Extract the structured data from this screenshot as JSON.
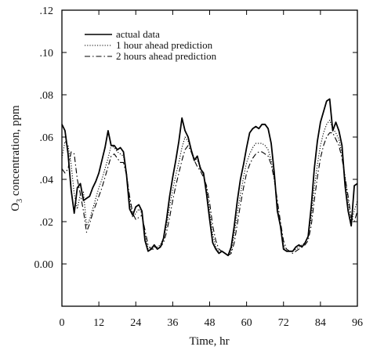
{
  "chart_data": {
    "type": "line",
    "xlabel": "Time, hr",
    "ylabel_main": "O",
    "ylabel_sub": "3",
    "ylabel_rest": " concentration, ppm",
    "xlim": [
      0,
      96
    ],
    "ylim": [
      -0.02,
      0.12
    ],
    "xticks": [
      0,
      12,
      24,
      36,
      48,
      60,
      72,
      84,
      96
    ],
    "xtick_labels": [
      "0",
      "12",
      "24",
      "36",
      "48",
      "60",
      "72",
      "84",
      "96"
    ],
    "yticks": [
      0.0,
      0.02,
      0.04,
      0.06,
      0.08,
      0.1,
      0.12
    ],
    "ytick_labels": [
      "0.00",
      ".02",
      ".04",
      ".06",
      ".08",
      ".10",
      ".12"
    ],
    "grid": false,
    "legend_position": "top-left",
    "series": [
      {
        "name": "actual data",
        "style": "solid",
        "color": "#000000",
        "x": [
          0,
          1,
          2,
          3,
          4,
          5,
          6,
          7,
          8,
          9,
          10,
          11,
          12,
          13,
          14,
          15,
          16,
          17,
          18,
          19,
          20,
          21,
          22,
          23,
          24,
          25,
          26,
          27,
          28,
          29,
          30,
          31,
          32,
          33,
          34,
          35,
          36,
          37,
          38,
          39,
          40,
          41,
          42,
          43,
          44,
          45,
          46,
          47,
          48,
          49,
          50,
          51,
          52,
          53,
          54,
          55,
          56,
          57,
          58,
          59,
          60,
          61,
          62,
          63,
          64,
          65,
          66,
          67,
          68,
          69,
          70,
          71,
          72,
          73,
          74,
          75,
          76,
          77,
          78,
          79,
          80,
          81,
          82,
          83,
          84,
          85,
          86,
          87,
          88,
          89,
          90,
          91,
          92,
          93,
          94,
          95,
          96
        ],
        "y": [
          0.066,
          0.063,
          0.052,
          0.035,
          0.024,
          0.036,
          0.038,
          0.03,
          0.031,
          0.032,
          0.036,
          0.039,
          0.043,
          0.049,
          0.055,
          0.063,
          0.056,
          0.056,
          0.054,
          0.055,
          0.053,
          0.042,
          0.026,
          0.023,
          0.027,
          0.028,
          0.025,
          0.011,
          0.006,
          0.007,
          0.009,
          0.007,
          0.008,
          0.012,
          0.021,
          0.032,
          0.041,
          0.049,
          0.058,
          0.069,
          0.063,
          0.06,
          0.054,
          0.049,
          0.051,
          0.045,
          0.043,
          0.033,
          0.021,
          0.01,
          0.007,
          0.005,
          0.006,
          0.005,
          0.004,
          0.008,
          0.018,
          0.03,
          0.04,
          0.047,
          0.055,
          0.062,
          0.064,
          0.065,
          0.064,
          0.066,
          0.066,
          0.064,
          0.057,
          0.043,
          0.025,
          0.018,
          0.007,
          0.006,
          0.006,
          0.006,
          0.008,
          0.009,
          0.008,
          0.01,
          0.013,
          0.027,
          0.045,
          0.058,
          0.067,
          0.072,
          0.077,
          0.078,
          0.063,
          0.067,
          0.063,
          0.056,
          0.037,
          0.025,
          0.018,
          0.037,
          0.038
        ]
      },
      {
        "name": "1 hour ahead prediction",
        "style": "dotted",
        "color": "#000000",
        "x": [
          0,
          1,
          2,
          3,
          4,
          5,
          6,
          7,
          8,
          9,
          10,
          11,
          12,
          13,
          14,
          15,
          16,
          17,
          18,
          19,
          20,
          21,
          22,
          23,
          24,
          25,
          26,
          27,
          28,
          29,
          30,
          31,
          32,
          33,
          34,
          35,
          36,
          37,
          38,
          39,
          40,
          41,
          42,
          43,
          44,
          45,
          46,
          47,
          48,
          49,
          50,
          51,
          52,
          53,
          54,
          55,
          56,
          57,
          58,
          59,
          60,
          61,
          62,
          63,
          64,
          65,
          66,
          67,
          68,
          69,
          70,
          71,
          72,
          73,
          74,
          75,
          76,
          77,
          78,
          79,
          80,
          81,
          82,
          83,
          84,
          85,
          86,
          87,
          88,
          89,
          90,
          91,
          92,
          93,
          94,
          95,
          96
        ],
        "y": [
          0.05,
          0.058,
          0.056,
          0.047,
          0.033,
          0.026,
          0.033,
          0.034,
          0.018,
          0.021,
          0.026,
          0.031,
          0.036,
          0.04,
          0.045,
          0.05,
          0.056,
          0.055,
          0.053,
          0.052,
          0.051,
          0.043,
          0.03,
          0.022,
          0.024,
          0.026,
          0.024,
          0.014,
          0.007,
          0.008,
          0.008,
          0.008,
          0.009,
          0.012,
          0.018,
          0.027,
          0.035,
          0.042,
          0.048,
          0.055,
          0.06,
          0.058,
          0.054,
          0.05,
          0.049,
          0.046,
          0.042,
          0.036,
          0.025,
          0.014,
          0.008,
          0.006,
          0.006,
          0.005,
          0.004,
          0.006,
          0.014,
          0.024,
          0.033,
          0.041,
          0.048,
          0.052,
          0.055,
          0.057,
          0.057,
          0.057,
          0.056,
          0.054,
          0.049,
          0.04,
          0.028,
          0.017,
          0.009,
          0.006,
          0.006,
          0.006,
          0.007,
          0.008,
          0.009,
          0.01,
          0.013,
          0.022,
          0.036,
          0.047,
          0.056,
          0.062,
          0.066,
          0.068,
          0.064,
          0.062,
          0.059,
          0.052,
          0.041,
          0.03,
          0.02,
          0.025,
          0.03
        ]
      },
      {
        "name": "2 hours ahead prediction",
        "style": "dashdot",
        "color": "#000000",
        "x": [
          0,
          1,
          2,
          3,
          4,
          5,
          6,
          7,
          8,
          9,
          10,
          11,
          12,
          13,
          14,
          15,
          16,
          17,
          18,
          19,
          20,
          21,
          22,
          23,
          24,
          25,
          26,
          27,
          28,
          29,
          30,
          31,
          32,
          33,
          34,
          35,
          36,
          37,
          38,
          39,
          40,
          41,
          42,
          43,
          44,
          45,
          46,
          47,
          48,
          49,
          50,
          51,
          52,
          53,
          54,
          55,
          56,
          57,
          58,
          59,
          60,
          61,
          62,
          63,
          64,
          65,
          66,
          67,
          68,
          69,
          70,
          71,
          72,
          73,
          74,
          75,
          76,
          77,
          78,
          79,
          80,
          81,
          82,
          83,
          84,
          85,
          86,
          87,
          88,
          89,
          90,
          91,
          92,
          93,
          94,
          95,
          96
        ],
        "y": [
          0.045,
          0.043,
          0.045,
          0.053,
          0.052,
          0.04,
          0.033,
          0.025,
          0.015,
          0.019,
          0.024,
          0.028,
          0.032,
          0.036,
          0.041,
          0.046,
          0.051,
          0.052,
          0.05,
          0.048,
          0.048,
          0.042,
          0.032,
          0.024,
          0.021,
          0.022,
          0.023,
          0.016,
          0.009,
          0.007,
          0.007,
          0.008,
          0.008,
          0.01,
          0.015,
          0.022,
          0.03,
          0.037,
          0.043,
          0.049,
          0.054,
          0.056,
          0.053,
          0.049,
          0.046,
          0.044,
          0.041,
          0.037,
          0.029,
          0.018,
          0.011,
          0.007,
          0.006,
          0.005,
          0.004,
          0.005,
          0.01,
          0.019,
          0.028,
          0.036,
          0.043,
          0.047,
          0.05,
          0.052,
          0.053,
          0.053,
          0.052,
          0.051,
          0.047,
          0.04,
          0.03,
          0.02,
          0.011,
          0.007,
          0.006,
          0.005,
          0.006,
          0.007,
          0.008,
          0.009,
          0.011,
          0.018,
          0.03,
          0.041,
          0.05,
          0.056,
          0.06,
          0.062,
          0.062,
          0.059,
          0.056,
          0.05,
          0.041,
          0.032,
          0.022,
          0.02,
          0.025
        ]
      }
    ]
  }
}
